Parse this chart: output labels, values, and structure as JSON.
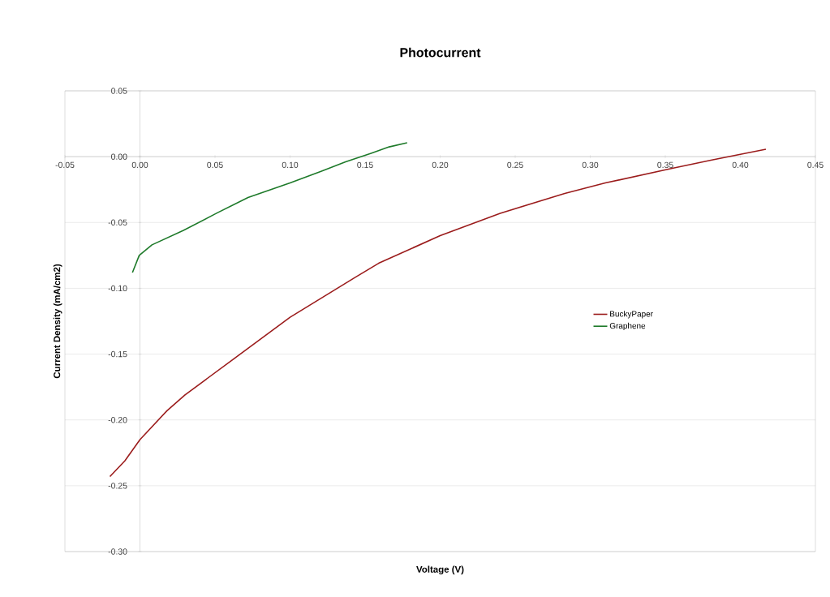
{
  "chart_data": {
    "type": "line",
    "title": "Photocurrent",
    "xlabel": "Voltage (V)",
    "ylabel": "Current Density (mA/cm2)",
    "series": [
      {
        "name": "BuckyPaper",
        "color": "#9b1c1c",
        "x": [
          -0.02,
          -0.01,
          0.0,
          0.018,
          0.03,
          0.062,
          0.1,
          0.143,
          0.159,
          0.2,
          0.24,
          0.283,
          0.31,
          0.354,
          0.381,
          0.417
        ],
        "values": [
          -0.243,
          -0.231,
          -0.215,
          -0.193,
          -0.181,
          -0.154,
          -0.122,
          -0.092,
          -0.081,
          -0.06,
          -0.043,
          -0.028,
          -0.02,
          -0.009,
          -0.0025,
          0.0056
        ]
      },
      {
        "name": "Graphene",
        "color": "#1e7a2a",
        "x": [
          -0.005,
          -0.0005,
          0.008,
          0.029,
          0.051,
          0.072,
          0.1,
          0.121,
          0.137,
          0.154,
          0.166,
          0.178
        ],
        "values": [
          -0.088,
          -0.075,
          -0.067,
          -0.056,
          -0.043,
          -0.031,
          -0.02,
          -0.011,
          -0.004,
          0.0025,
          0.0074,
          0.0105
        ]
      }
    ],
    "xlim": [
      -0.05,
      0.45
    ],
    "xticks": [
      {
        "value": -0.05,
        "label": "-0.05"
      },
      {
        "value": 0,
        "label": "0.00"
      },
      {
        "value": 0.05,
        "label": "0.05"
      },
      {
        "value": 0.1,
        "label": "0.10"
      },
      {
        "value": 0.15,
        "label": "0.15"
      },
      {
        "value": 0.2,
        "label": "0.20"
      },
      {
        "value": 0.25,
        "label": "0.25"
      },
      {
        "value": 0.3,
        "label": "0.30"
      },
      {
        "value": 0.35,
        "label": "0.35"
      },
      {
        "value": 0.4,
        "label": "0.40"
      },
      {
        "value": 0.45,
        "label": "0.45"
      }
    ],
    "ylim": [
      -0.3,
      0.05
    ],
    "yticks": [
      {
        "value": 0.05,
        "label": "0.05"
      },
      {
        "value": 0,
        "label": "0.00"
      },
      {
        "value": -0.05,
        "label": "-0.05"
      },
      {
        "value": -0.1,
        "label": "-0.10"
      },
      {
        "value": -0.15,
        "label": "-0.15"
      },
      {
        "value": -0.2,
        "label": "-0.20"
      },
      {
        "value": -0.25,
        "label": "-0.25"
      },
      {
        "value": -0.3,
        "label": "-0.30"
      }
    ],
    "grid": "y",
    "legend": "right",
    "marker": "none",
    "line_style": "solid"
  }
}
